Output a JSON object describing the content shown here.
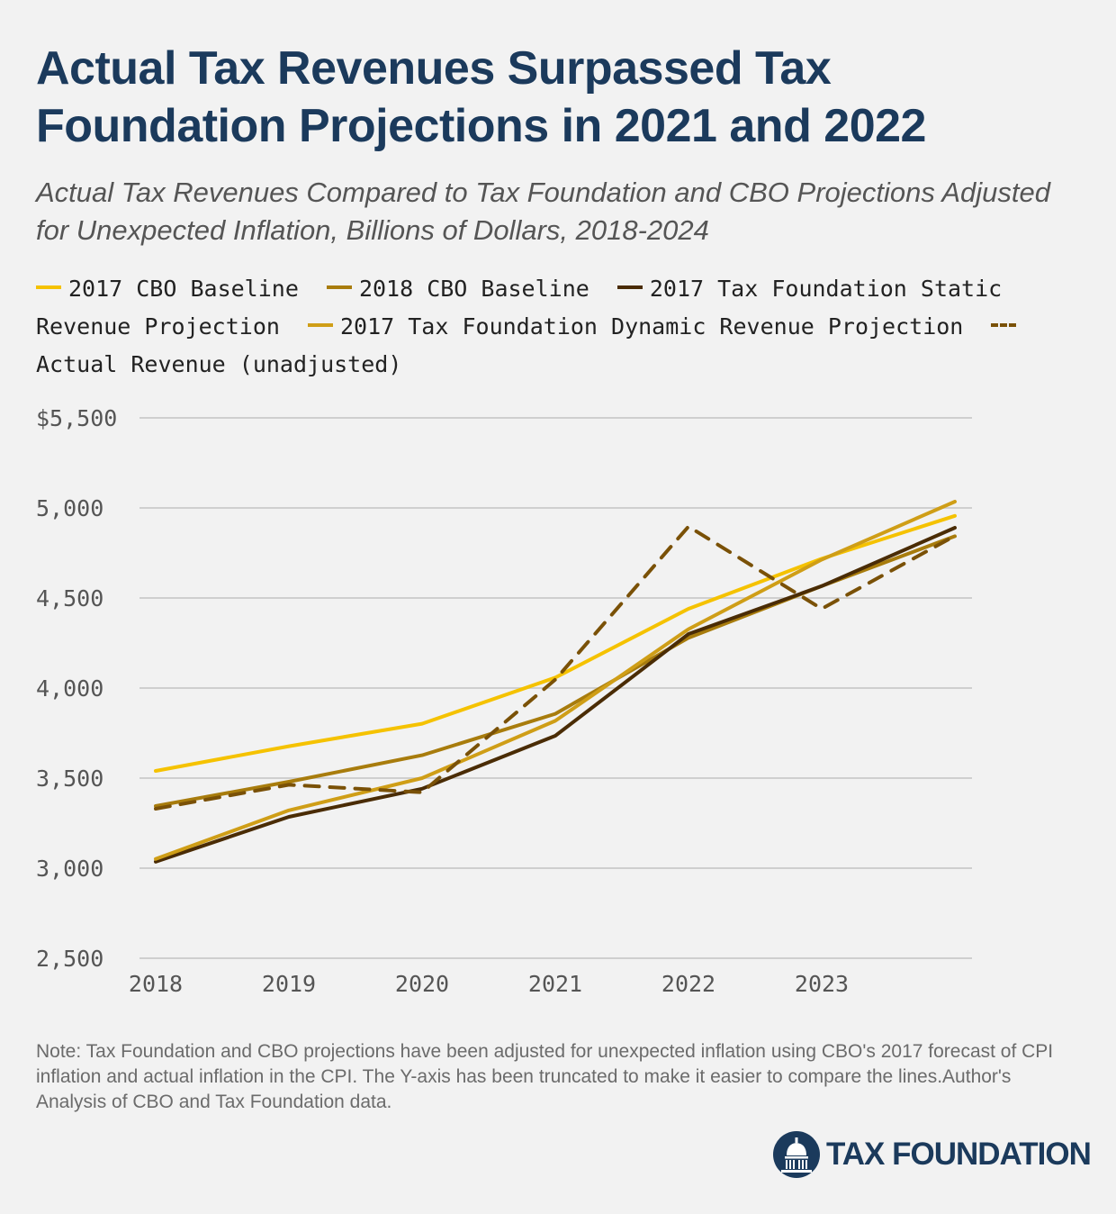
{
  "header": {
    "title": "Actual Tax Revenues Surpassed Tax Foundation Projections in 2021 and 2022",
    "subtitle": "Actual Tax Revenues Compared to Tax Foundation and CBO Projections Adjusted for Unexpected Inflation, Billions of Dollars, 2018-2024"
  },
  "chart_data": {
    "type": "line",
    "title": "Actual Tax Revenues Surpassed Tax Foundation Projections in 2021 and 2022",
    "subtitle": "Actual Tax Revenues Compared to Tax Foundation and CBO Projections Adjusted for Unexpected Inflation, Billions of Dollars, 2018-2024",
    "x": [
      2018,
      2019,
      2020,
      2021,
      2022,
      2023,
      2024
    ],
    "x_tick_labels": [
      "2018",
      "2019",
      "2020",
      "2021",
      "2022",
      "2023"
    ],
    "y_tick_labels": [
      "$5,500",
      "5,000",
      "4,500",
      "4,000",
      "3,500",
      "3,000",
      "2,500"
    ],
    "y_ticks": [
      5500,
      5000,
      4500,
      4000,
      3500,
      3000,
      2500
    ],
    "ylim": [
      2500,
      5500
    ],
    "grid": "horizontal",
    "legend_position": "top",
    "series": [
      {
        "name": "2017 CBO Baseline",
        "color": "#f5c200",
        "dashed": false,
        "values": [
          3540,
          3677,
          3802,
          4058,
          4440,
          4718,
          4956
        ]
      },
      {
        "name": "2018 CBO Baseline",
        "color": "#a87c0d",
        "dashed": false,
        "values": [
          3345,
          3480,
          3627,
          3857,
          4279,
          4566,
          4843
        ]
      },
      {
        "name": "2017 Tax Foundation Static Revenue Projection",
        "color": "#4a2c05",
        "dashed": false,
        "values": [
          3036,
          3285,
          3441,
          3735,
          4300,
          4566,
          4890
        ]
      },
      {
        "name": "2017 Tax Foundation Dynamic Revenue Projection",
        "color": "#cf9e17",
        "dashed": false,
        "values": [
          3051,
          3321,
          3500,
          3818,
          4327,
          4713,
          5035
        ]
      },
      {
        "name": "Actual Revenue (unadjusted)",
        "color": "#7a5107",
        "dashed": true,
        "values": [
          3330,
          3463,
          3421,
          4047,
          4897,
          4440,
          4845
        ]
      }
    ]
  },
  "footer": {
    "note": "Note: Tax Foundation and CBO projections have been adjusted for unexpected inflation using CBO's 2017 forecast of CPI inflation and actual inflation in the CPI. The Y-axis has been truncated to make it easier to compare the lines.Author's Analysis of CBO and Tax Foundation data.",
    "brand": "TAX FOUNDATION",
    "brand_color": "#1b3a5c"
  }
}
